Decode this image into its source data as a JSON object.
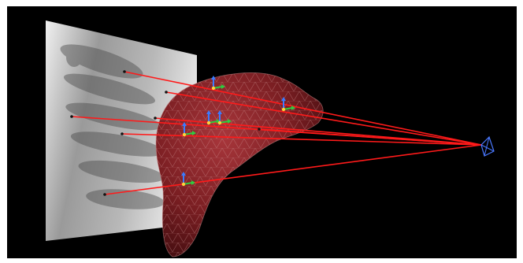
{
  "scene": {
    "background_color": "#000000",
    "xray_plane": {
      "name": "x-ray-projection-image",
      "tone_light": "#f2f2f2",
      "tone_dark": "#5a5a5a"
    },
    "organ": {
      "name": "liver-mesh",
      "fill": "#7a1e22",
      "edge": "#c98a8a"
    },
    "ray_color": "#ff1a1a",
    "camera_color": "#4a78ff",
    "source": "camera-x-ray-source",
    "landmark_count": 7
  }
}
